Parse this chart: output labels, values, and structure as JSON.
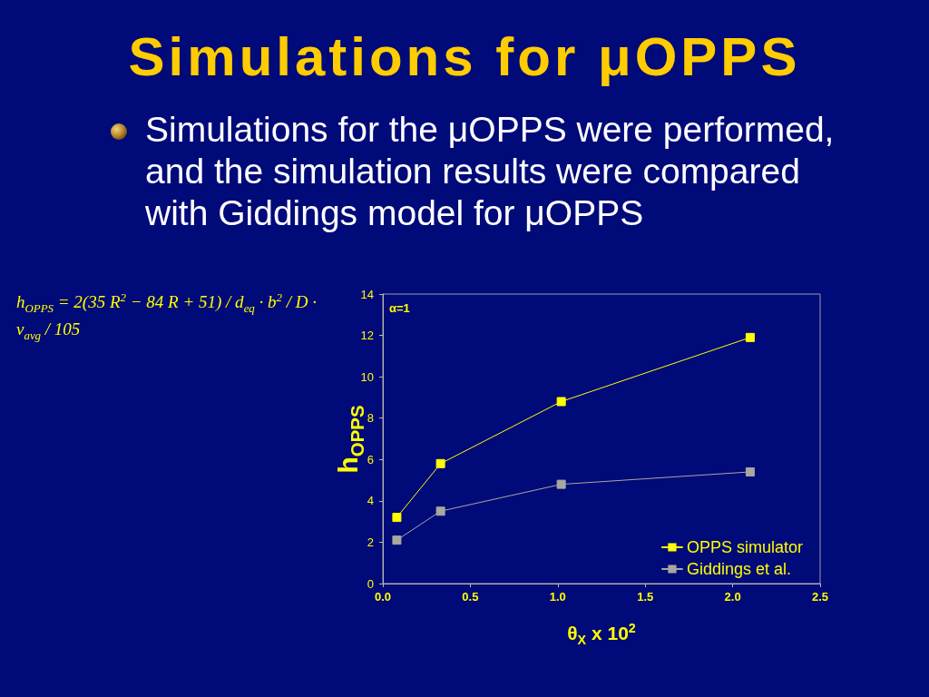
{
  "chart_data": {
    "type": "line",
    "title": "Simulations for μOPPS",
    "subtitle": "Simulations for the μOPPS were performed, and the simulation results were compared with Giddings model for μOPPS",
    "xlabel": "θ$_{X}$ x 10$^{2}$",
    "ylabel": "h$_{OPPS}$",
    "annotations": [
      "α=1",
      "h$_{OPPS}$ = 2(35 R$^{2}$ − 84 R + 51) / d$_{eq}$ · b$^{2}$ / D · v$_{avg}$ / 105"
    ],
    "x": [
      0.08,
      0.33,
      1.02,
      2.1
    ],
    "series": [
      {
        "name": "OPPS simulator",
        "color": "#ffff00",
        "values": [
          3.2,
          5.8,
          8.8,
          11.9
        ]
      },
      {
        "name": "Giddings et al.",
        "color": "#a8a8a0",
        "values": [
          2.1,
          3.5,
          4.8,
          5.4
        ]
      }
    ],
    "xlim": [
      0,
      2.5
    ],
    "xticks": [
      {
        "value": 0,
        "label": "0.0"
      },
      {
        "value": 0.5,
        "label": "0.5"
      },
      {
        "value": 1,
        "label": "1.0"
      },
      {
        "value": 1.5,
        "label": "1.5"
      },
      {
        "value": 2,
        "label": "2.0"
      },
      {
        "value": 2.5,
        "label": "2.5"
      }
    ],
    "ylim": [
      0,
      14
    ],
    "yticks": [
      0,
      2,
      4,
      6,
      8,
      10,
      12,
      14
    ],
    "marker": "square",
    "line_style": "solid",
    "legend": "bottom right"
  }
}
